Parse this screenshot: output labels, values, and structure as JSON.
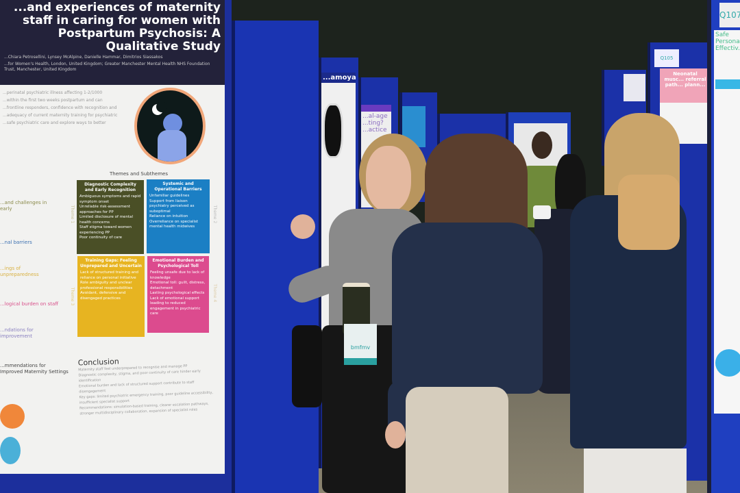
{
  "poster": {
    "title": "...and experiences of maternity staff in caring for women with Postpartum Psychosis: A Qualitative Study",
    "authors": "...Chiara Petrosellini, Lynsey McAlpine, Danielle Hammar, Dimitrios Siassakos",
    "affiliations": "...for Women's Health, London, United Kingdom; Greater Manchester Mental Health NHS Foundation Trust, Manchester, United Kingdom",
    "intro_lines": [
      "...perinatal psychiatric illness affecting 1-2/1000",
      "...within the first two weeks postpartum and can",
      "...frontline responders, confidence with recognition and",
      "...adequacy of current maternity training for psychiatric",
      "...safe psychiatric care and explore ways to better"
    ],
    "themes_heading": "Themes and Subthemes",
    "themes": [
      {
        "label": "Theme 1",
        "title": "Diagnostic Complexity and Early Recognition",
        "items": [
          "Ambiguous symptoms and rapid symptom onset",
          "Unreliable risk-assessment approaches for PP",
          "Limited disclosure of mental health concerns",
          "Staff stigma toward women experiencing PP",
          "Poor continuity of care"
        ],
        "color": "#4a4f26"
      },
      {
        "label": "Theme 2",
        "title": "Systemic and Operational Barriers",
        "items": [
          "Unfamiliar guidelines",
          "Support from liaison psychiatry perceived as suboptimal",
          "Reliance on intuition",
          "Overreliance on specialist mental health midwives"
        ],
        "color": "#1b7fc4"
      },
      {
        "label": "Theme 3",
        "title": "Training Gaps: Feeling Unprepared and Uncertain",
        "items": [
          "Lack of structured training and reliance on personal initiative",
          "Role ambiguity and unclear professional responsibilities",
          "Avoidant, defensive and disengaged practices"
        ],
        "color": "#e7b421"
      },
      {
        "label": "Theme 4",
        "title": "Emotional Burden and Psychological Toll",
        "items": [
          "Feeling unsafe due to lack of knowledge",
          "Emotional toll: guilt, distress, detachment",
          "Lasting psychological effects",
          "Lack of emotional support leading to reduced engagement in psychiatric care"
        ],
        "color": "#dc4b8e"
      }
    ],
    "left_headings": [
      "...and challenges in early",
      "...nal barriers",
      "...ings of unpreparedness",
      "...logical burden on staff",
      "...ndations for improvement",
      "...mmendations for Improved Maternity Settings"
    ],
    "conclusion_heading": "Conclusion",
    "conclusion_items": [
      "Maternity staff feel underprepared to recognise and manage PP",
      "Diagnostic complexity, stigma, and poor continuity of care hinder early identification",
      "Emotional burden and lack of structured support contribute to staff disengagement",
      "Key gaps: limited psychiatric emergency training, poor guideline accessibility, insufficient specialist support",
      "Recommendations: simulation-based training, clearer escalation pathways, stronger multidisciplinary collaboration, expansion of specialist roles"
    ]
  },
  "background_posters": {
    "p1": "...amoya",
    "p2": "...al-age ...ting? ...actice",
    "p3_code": "Q105",
    "p3_title": "Neonatal musc... referral path... plann...",
    "p4_code": "Q107",
    "p4_title": "Safe Persona... Effectiv..."
  },
  "badge": {
    "text": "bmfmv"
  }
}
